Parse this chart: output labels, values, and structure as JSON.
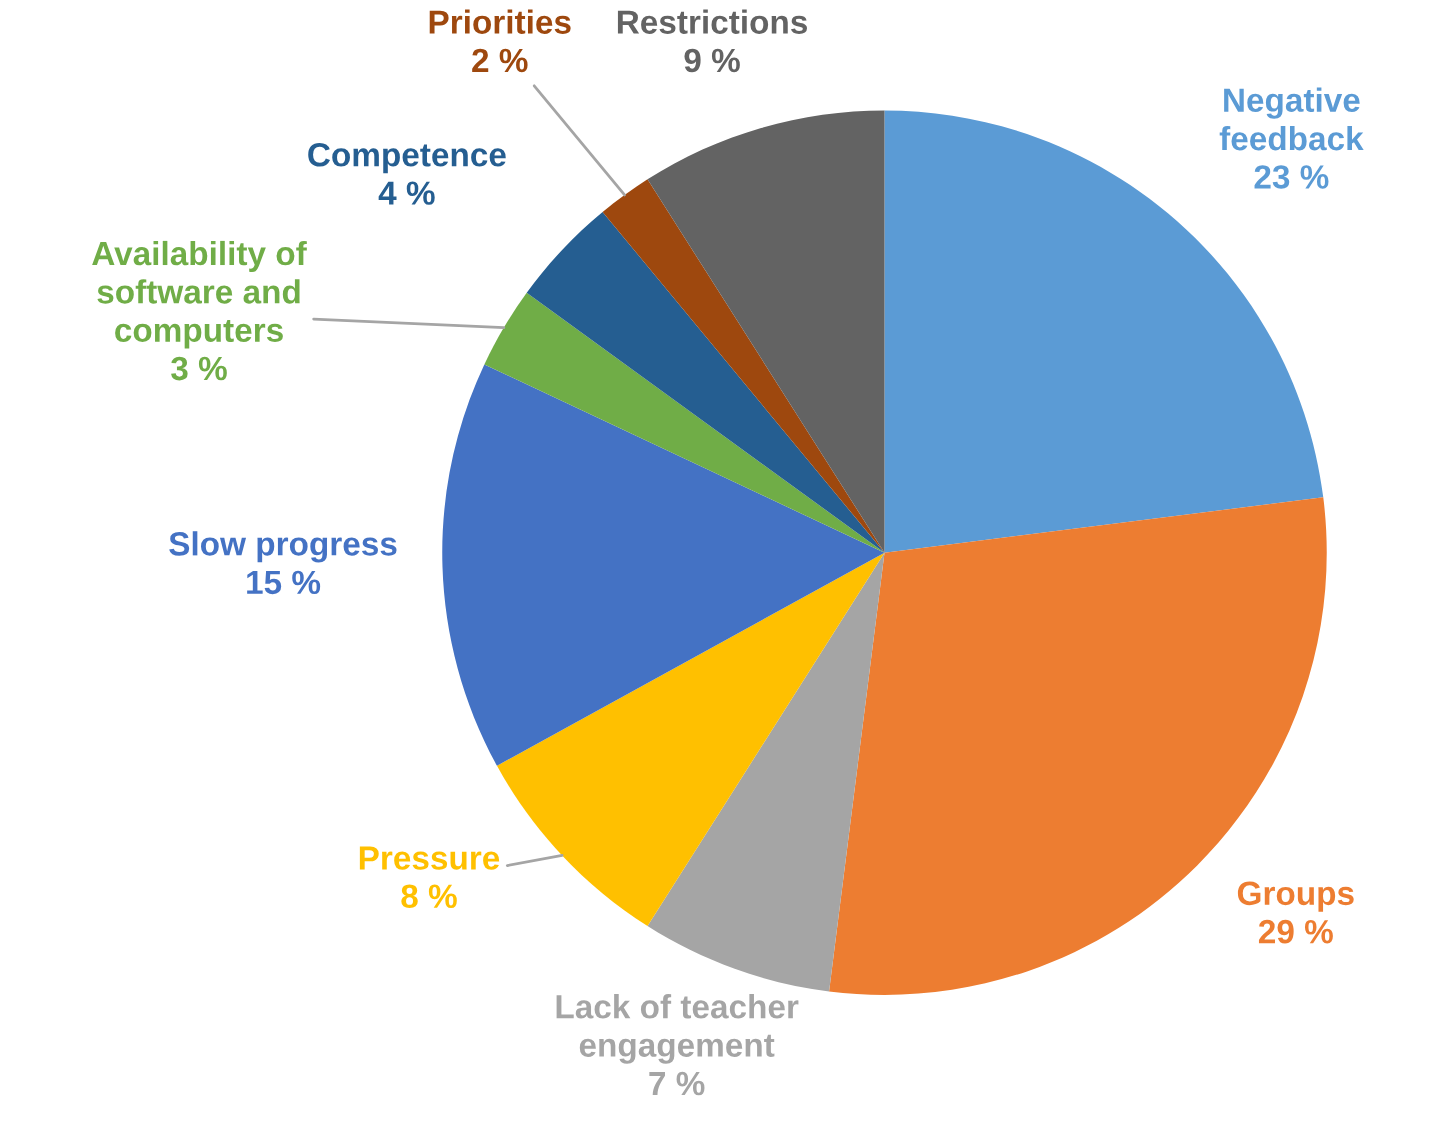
{
  "chart_data": {
    "type": "pie",
    "categories": [
      "Negative\nfeedback",
      "Groups",
      "Lack of teacher\nengagement",
      "Pressure",
      "Slow progress",
      "Availability of\nsoftware and\ncomputers",
      "Competence",
      "Priorities",
      "Restrictions"
    ],
    "values": [
      23,
      29,
      7,
      8,
      15,
      3,
      4,
      2,
      9
    ],
    "value_labels": [
      "23 %",
      "29 %",
      "7 %",
      "8 %",
      "15 %",
      "3 %",
      "4 %",
      "2 %",
      "9 %"
    ],
    "colors": [
      "#5b9bd5",
      "#ed7d31",
      "#a5a5a5",
      "#ffc000",
      "#4472c4",
      "#70ad47",
      "#255e91",
      "#9e480e",
      "#636363"
    ],
    "legend": false
  }
}
